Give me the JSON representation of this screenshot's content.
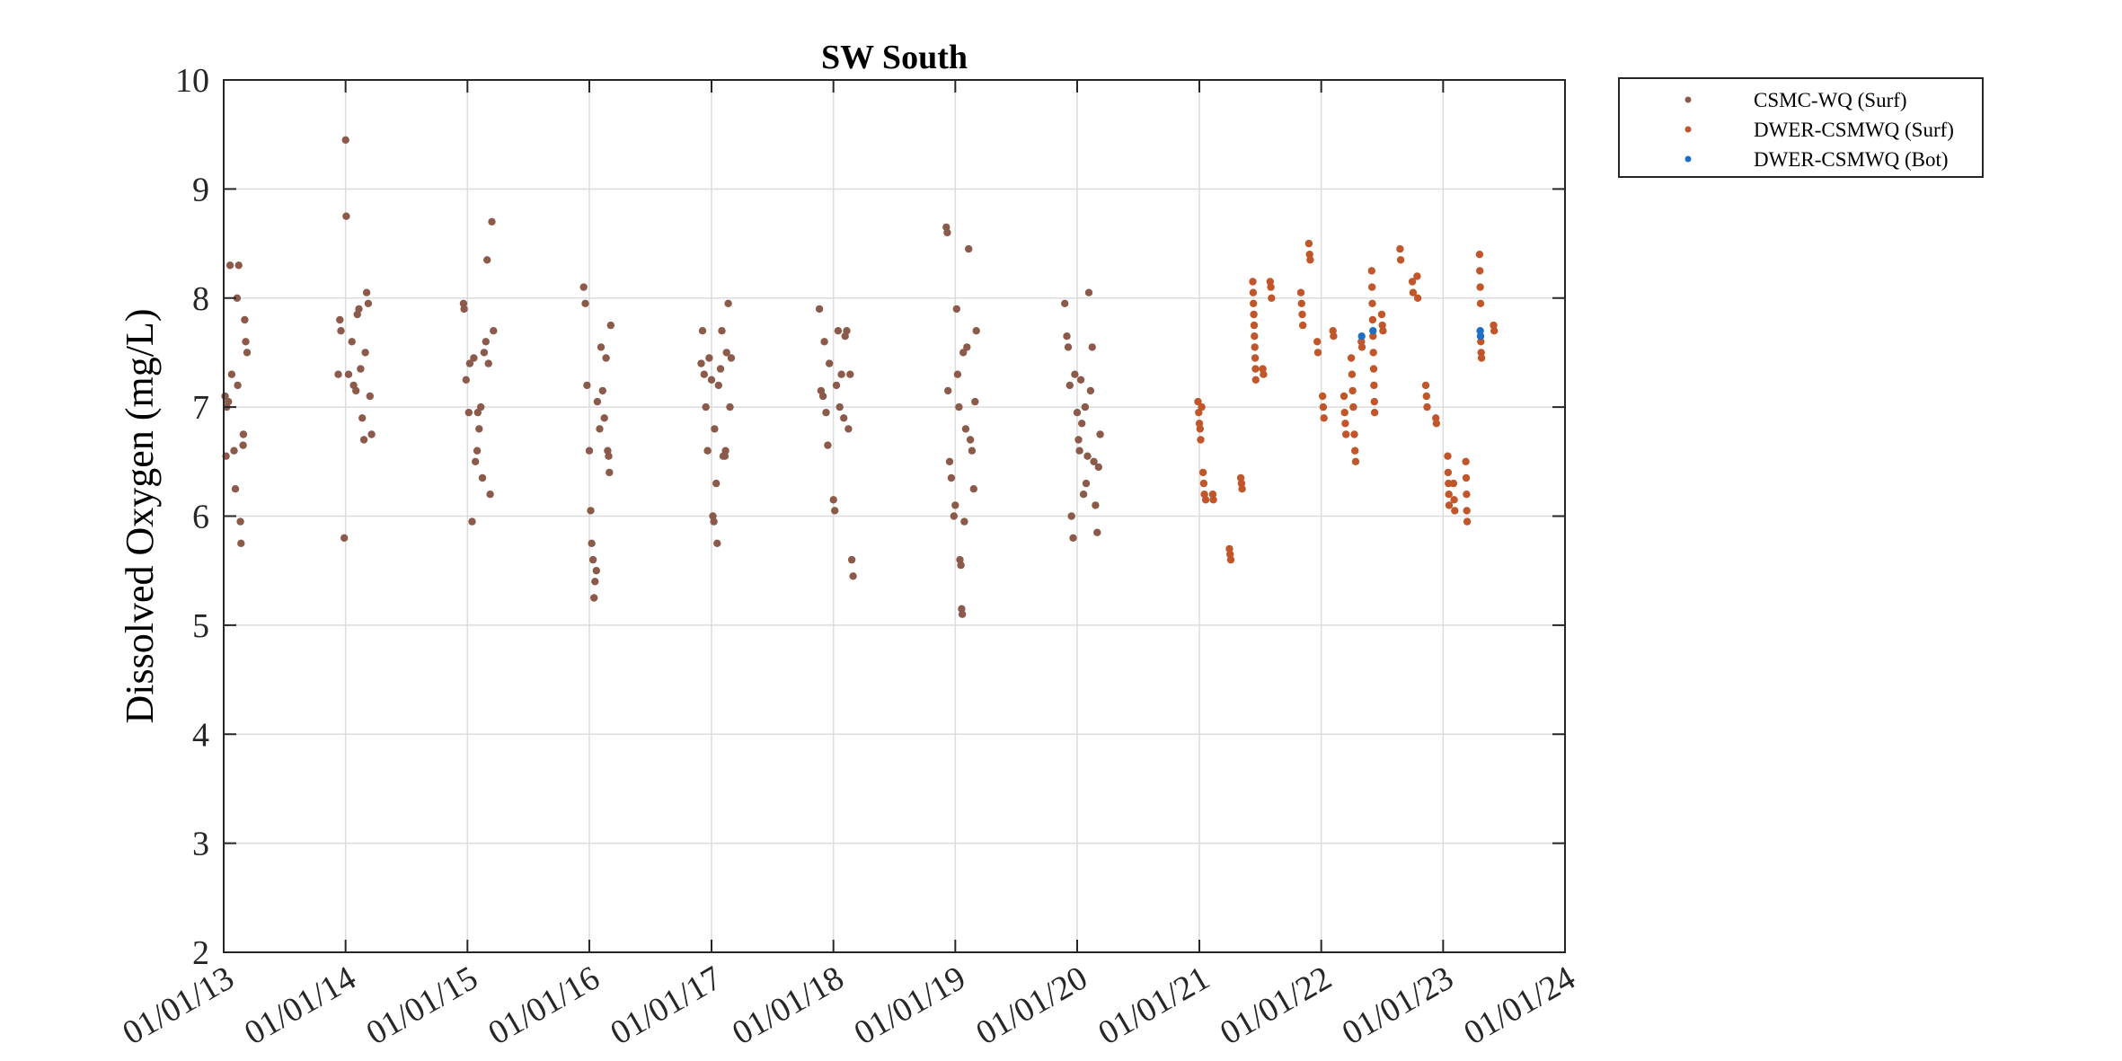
{
  "chart_data": {
    "type": "scatter",
    "title": "SW South",
    "xlabel": "",
    "ylabel": "Dissolved Oxygen (mg/L)",
    "ylim": [
      2,
      10
    ],
    "yticks": [
      "2",
      "3",
      "4",
      "5",
      "6",
      "7",
      "8",
      "9",
      "10"
    ],
    "xlim": [
      "2013-01-01",
      "2024-01-01"
    ],
    "xticks": [
      "01/01/13",
      "01/01/14",
      "01/01/15",
      "01/01/16",
      "01/01/17",
      "01/01/18",
      "01/01/19",
      "01/01/20",
      "01/01/21",
      "01/01/22",
      "01/01/23",
      "01/01/24"
    ],
    "grid": true,
    "legend_position": "outside top-right",
    "series": [
      {
        "name": "CSMC-WQ (Surf)",
        "color": "#8b5a4a",
        "points": [
          [
            "2013-01-05",
            7.1
          ],
          [
            "2013-01-08",
            6.55
          ],
          [
            "2013-01-10",
            7.0
          ],
          [
            "2013-01-20",
            8.3
          ],
          [
            "2013-01-25",
            7.3
          ],
          [
            "2013-02-01",
            6.6
          ],
          [
            "2013-02-05",
            6.25
          ],
          [
            "2013-02-10",
            8.0
          ],
          [
            "2013-02-15",
            8.3
          ],
          [
            "2013-02-20",
            5.95
          ],
          [
            "2013-02-22",
            5.75
          ],
          [
            "2013-03-01",
            6.75
          ],
          [
            "2013-03-05",
            7.8
          ],
          [
            "2013-03-08",
            7.6
          ],
          [
            "2013-03-12",
            7.5
          ],
          [
            "2013-02-12",
            7.2
          ],
          [
            "2013-02-28",
            6.65
          ],
          [
            "2013-01-15",
            7.05
          ],
          [
            "2013-12-10",
            7.3
          ],
          [
            "2013-12-15",
            7.8
          ],
          [
            "2013-12-18",
            7.7
          ],
          [
            "2013-12-28",
            5.8
          ],
          [
            "2014-01-01",
            9.45
          ],
          [
            "2014-01-03",
            8.75
          ],
          [
            "2014-01-10",
            7.3
          ],
          [
            "2014-01-20",
            7.6
          ],
          [
            "2014-01-25",
            7.2
          ],
          [
            "2014-02-05",
            7.85
          ],
          [
            "2014-02-10",
            7.9
          ],
          [
            "2014-02-15",
            7.35
          ],
          [
            "2014-02-20",
            6.9
          ],
          [
            "2014-02-25",
            6.7
          ],
          [
            "2014-03-01",
            7.5
          ],
          [
            "2014-03-05",
            8.05
          ],
          [
            "2014-03-10",
            7.95
          ],
          [
            "2014-03-15",
            7.1
          ],
          [
            "2014-03-20",
            6.75
          ],
          [
            "2014-02-01",
            7.15
          ],
          [
            "2014-12-20",
            7.95
          ],
          [
            "2014-12-22",
            7.9
          ],
          [
            "2014-12-28",
            7.25
          ],
          [
            "2015-01-05",
            6.95
          ],
          [
            "2015-01-08",
            7.4
          ],
          [
            "2015-01-15",
            5.95
          ],
          [
            "2015-01-20",
            7.45
          ],
          [
            "2015-01-25",
            6.5
          ],
          [
            "2015-01-30",
            6.6
          ],
          [
            "2015-02-05",
            6.8
          ],
          [
            "2015-02-10",
            7.0
          ],
          [
            "2015-02-15",
            6.35
          ],
          [
            "2015-02-20",
            7.5
          ],
          [
            "2015-02-25",
            7.6
          ],
          [
            "2015-03-01",
            8.35
          ],
          [
            "2015-03-05",
            7.4
          ],
          [
            "2015-03-10",
            6.2
          ],
          [
            "2015-03-15",
            8.7
          ],
          [
            "2015-03-20",
            7.7
          ],
          [
            "2015-02-01",
            6.95
          ],
          [
            "2015-12-15",
            8.1
          ],
          [
            "2015-12-20",
            7.95
          ],
          [
            "2015-12-25",
            7.2
          ],
          [
            "2016-01-01",
            6.6
          ],
          [
            "2016-01-05",
            6.05
          ],
          [
            "2016-01-08",
            5.75
          ],
          [
            "2016-01-12",
            5.6
          ],
          [
            "2016-01-15",
            5.25
          ],
          [
            "2016-01-18",
            5.4
          ],
          [
            "2016-01-22",
            5.5
          ],
          [
            "2016-01-25",
            7.05
          ],
          [
            "2016-02-01",
            6.8
          ],
          [
            "2016-02-05",
            7.55
          ],
          [
            "2016-02-10",
            7.15
          ],
          [
            "2016-02-15",
            6.9
          ],
          [
            "2016-02-20",
            7.45
          ],
          [
            "2016-02-25",
            6.6
          ],
          [
            "2016-03-01",
            6.4
          ],
          [
            "2016-03-05",
            7.75
          ],
          [
            "2016-02-28",
            6.55
          ],
          [
            "2016-12-01",
            7.4
          ],
          [
            "2016-12-05",
            7.7
          ],
          [
            "2016-12-10",
            7.3
          ],
          [
            "2016-12-15",
            7.0
          ],
          [
            "2016-12-20",
            6.6
          ],
          [
            "2016-12-25",
            7.45
          ],
          [
            "2017-01-01",
            7.25
          ],
          [
            "2017-01-05",
            6.0
          ],
          [
            "2017-01-08",
            5.95
          ],
          [
            "2017-01-10",
            6.8
          ],
          [
            "2017-01-15",
            6.3
          ],
          [
            "2017-01-18",
            5.75
          ],
          [
            "2017-01-22",
            7.2
          ],
          [
            "2017-02-01",
            7.7
          ],
          [
            "2017-02-05",
            6.55
          ],
          [
            "2017-02-10",
            6.55
          ],
          [
            "2017-02-15",
            7.5
          ],
          [
            "2017-02-20",
            7.95
          ],
          [
            "2017-02-25",
            7.0
          ],
          [
            "2017-03-01",
            7.45
          ],
          [
            "2017-01-28",
            7.35
          ],
          [
            "2017-02-12",
            6.6
          ],
          [
            "2017-11-20",
            7.9
          ],
          [
            "2017-11-25",
            7.15
          ],
          [
            "2017-12-01",
            7.1
          ],
          [
            "2017-12-05",
            7.6
          ],
          [
            "2017-12-10",
            6.95
          ],
          [
            "2017-12-15",
            6.65
          ],
          [
            "2017-12-20",
            7.4
          ],
          [
            "2018-01-01",
            6.15
          ],
          [
            "2018-01-05",
            6.05
          ],
          [
            "2018-01-10",
            7.2
          ],
          [
            "2018-01-15",
            7.7
          ],
          [
            "2018-01-20",
            7.0
          ],
          [
            "2018-01-25",
            7.3
          ],
          [
            "2018-02-01",
            6.9
          ],
          [
            "2018-02-05",
            7.65
          ],
          [
            "2018-02-10",
            7.7
          ],
          [
            "2018-02-15",
            6.8
          ],
          [
            "2018-02-20",
            7.3
          ],
          [
            "2018-02-25",
            5.6
          ],
          [
            "2018-03-01",
            5.45
          ],
          [
            "2018-12-05",
            8.65
          ],
          [
            "2018-12-08",
            8.6
          ],
          [
            "2018-12-10",
            7.15
          ],
          [
            "2018-12-15",
            6.5
          ],
          [
            "2018-12-20",
            6.35
          ],
          [
            "2018-12-28",
            6.0
          ],
          [
            "2019-01-01",
            6.1
          ],
          [
            "2019-01-05",
            7.9
          ],
          [
            "2019-01-08",
            7.3
          ],
          [
            "2019-01-12",
            7.0
          ],
          [
            "2019-01-15",
            5.6
          ],
          [
            "2019-01-18",
            5.55
          ],
          [
            "2019-01-20",
            5.15
          ],
          [
            "2019-01-22",
            5.1
          ],
          [
            "2019-01-28",
            5.95
          ],
          [
            "2019-02-01",
            6.8
          ],
          [
            "2019-02-05",
            7.55
          ],
          [
            "2019-02-10",
            8.45
          ],
          [
            "2019-02-15",
            6.7
          ],
          [
            "2019-02-20",
            6.6
          ],
          [
            "2019-02-25",
            6.25
          ],
          [
            "2019-03-01",
            7.05
          ],
          [
            "2019-03-05",
            7.7
          ],
          [
            "2019-01-25",
            7.5
          ],
          [
            "2019-11-25",
            7.95
          ],
          [
            "2019-12-01",
            7.65
          ],
          [
            "2019-12-05",
            7.55
          ],
          [
            "2019-12-10",
            7.2
          ],
          [
            "2019-12-15",
            6.0
          ],
          [
            "2019-12-20",
            5.8
          ],
          [
            "2019-12-25",
            7.3
          ],
          [
            "2020-01-01",
            6.95
          ],
          [
            "2020-01-05",
            6.7
          ],
          [
            "2020-01-08",
            6.6
          ],
          [
            "2020-01-12",
            7.25
          ],
          [
            "2020-01-15",
            6.85
          ],
          [
            "2020-01-20",
            6.2
          ],
          [
            "2020-01-25",
            7.0
          ],
          [
            "2020-02-01",
            6.55
          ],
          [
            "2020-02-05",
            8.05
          ],
          [
            "2020-02-10",
            7.15
          ],
          [
            "2020-02-15",
            7.55
          ],
          [
            "2020-02-20",
            6.5
          ],
          [
            "2020-02-25",
            6.1
          ],
          [
            "2020-03-01",
            5.85
          ],
          [
            "2020-03-05",
            6.45
          ],
          [
            "2020-03-10",
            6.75
          ],
          [
            "2020-01-28",
            6.3
          ]
        ]
      },
      {
        "name": "DWER-CSMWQ (Surf)",
        "color": "#c0562a",
        "points": [
          [
            "2020-12-28",
            7.05
          ],
          [
            "2020-12-30",
            6.95
          ],
          [
            "2021-01-01",
            6.85
          ],
          [
            "2021-01-03",
            6.8
          ],
          [
            "2021-01-05",
            6.7
          ],
          [
            "2021-01-08",
            7.0
          ],
          [
            "2021-01-12",
            6.4
          ],
          [
            "2021-01-14",
            6.3
          ],
          [
            "2021-01-16",
            6.2
          ],
          [
            "2021-01-20",
            6.15
          ],
          [
            "2021-02-10",
            6.2
          ],
          [
            "2021-02-12",
            6.15
          ],
          [
            "2021-04-01",
            5.7
          ],
          [
            "2021-04-03",
            5.65
          ],
          [
            "2021-04-05",
            5.6
          ],
          [
            "2021-05-05",
            6.35
          ],
          [
            "2021-05-07",
            6.3
          ],
          [
            "2021-05-09",
            6.25
          ],
          [
            "2021-06-10",
            8.15
          ],
          [
            "2021-06-11",
            8.05
          ],
          [
            "2021-06-12",
            7.95
          ],
          [
            "2021-06-13",
            7.85
          ],
          [
            "2021-06-14",
            7.75
          ],
          [
            "2021-06-15",
            7.65
          ],
          [
            "2021-06-16",
            7.55
          ],
          [
            "2021-06-17",
            7.45
          ],
          [
            "2021-06-18",
            7.35
          ],
          [
            "2021-06-19",
            7.25
          ],
          [
            "2021-07-10",
            7.35
          ],
          [
            "2021-07-12",
            7.3
          ],
          [
            "2021-08-01",
            8.15
          ],
          [
            "2021-08-03",
            8.1
          ],
          [
            "2021-08-05",
            8.0
          ],
          [
            "2021-11-01",
            8.05
          ],
          [
            "2021-11-03",
            7.95
          ],
          [
            "2021-11-05",
            7.85
          ],
          [
            "2021-11-07",
            7.75
          ],
          [
            "2021-11-25",
            8.5
          ],
          [
            "2021-11-27",
            8.4
          ],
          [
            "2021-11-29",
            8.35
          ],
          [
            "2021-12-20",
            7.6
          ],
          [
            "2021-12-22",
            7.5
          ],
          [
            "2022-01-05",
            7.1
          ],
          [
            "2022-01-07",
            7.0
          ],
          [
            "2022-01-09",
            6.9
          ],
          [
            "2022-02-05",
            7.7
          ],
          [
            "2022-02-07",
            7.65
          ],
          [
            "2022-03-10",
            7.1
          ],
          [
            "2022-03-12",
            6.95
          ],
          [
            "2022-03-14",
            6.85
          ],
          [
            "2022-03-16",
            6.75
          ],
          [
            "2022-04-01",
            7.45
          ],
          [
            "2022-04-03",
            7.3
          ],
          [
            "2022-04-05",
            7.15
          ],
          [
            "2022-04-07",
            7.0
          ],
          [
            "2022-04-10",
            6.75
          ],
          [
            "2022-04-12",
            6.6
          ],
          [
            "2022-04-14",
            6.5
          ],
          [
            "2022-05-01",
            7.6
          ],
          [
            "2022-05-03",
            7.55
          ],
          [
            "2022-06-01",
            8.25
          ],
          [
            "2022-06-02",
            8.1
          ],
          [
            "2022-06-03",
            7.95
          ],
          [
            "2022-06-04",
            7.8
          ],
          [
            "2022-06-05",
            7.65
          ],
          [
            "2022-06-06",
            7.5
          ],
          [
            "2022-06-07",
            7.35
          ],
          [
            "2022-06-08",
            7.2
          ],
          [
            "2022-06-09",
            7.05
          ],
          [
            "2022-06-10",
            6.95
          ],
          [
            "2022-07-01",
            7.85
          ],
          [
            "2022-07-03",
            7.75
          ],
          [
            "2022-07-05",
            7.7
          ],
          [
            "2022-08-25",
            8.45
          ],
          [
            "2022-08-27",
            8.35
          ],
          [
            "2022-10-01",
            8.15
          ],
          [
            "2022-10-03",
            8.05
          ],
          [
            "2022-10-15",
            8.2
          ],
          [
            "2022-10-17",
            8.0
          ],
          [
            "2022-11-10",
            7.2
          ],
          [
            "2022-11-12",
            7.1
          ],
          [
            "2022-11-14",
            7.0
          ],
          [
            "2022-12-10",
            6.9
          ],
          [
            "2022-12-12",
            6.85
          ],
          [
            "2023-01-15",
            6.55
          ],
          [
            "2023-01-16",
            6.4
          ],
          [
            "2023-01-17",
            6.3
          ],
          [
            "2023-01-18",
            6.2
          ],
          [
            "2023-01-19",
            6.1
          ],
          [
            "2023-02-01",
            6.3
          ],
          [
            "2023-02-03",
            6.15
          ],
          [
            "2023-02-05",
            6.05
          ],
          [
            "2023-03-10",
            6.5
          ],
          [
            "2023-03-11",
            6.35
          ],
          [
            "2023-03-12",
            6.2
          ],
          [
            "2023-03-13",
            6.05
          ],
          [
            "2023-03-14",
            5.95
          ],
          [
            "2023-04-20",
            8.4
          ],
          [
            "2023-04-21",
            8.25
          ],
          [
            "2023-04-22",
            8.1
          ],
          [
            "2023-04-23",
            7.95
          ],
          [
            "2023-04-24",
            7.6
          ],
          [
            "2023-04-25",
            7.5
          ],
          [
            "2023-04-26",
            7.45
          ],
          [
            "2023-06-01",
            7.75
          ],
          [
            "2023-06-03",
            7.7
          ]
        ]
      },
      {
        "name": "DWER-CSMWQ (Bot)",
        "color": "#1f6fc5",
        "points": [
          [
            "2022-05-02",
            7.65
          ],
          [
            "2022-06-05",
            7.7
          ],
          [
            "2023-04-22",
            7.7
          ],
          [
            "2023-04-23",
            7.65
          ]
        ]
      }
    ]
  }
}
